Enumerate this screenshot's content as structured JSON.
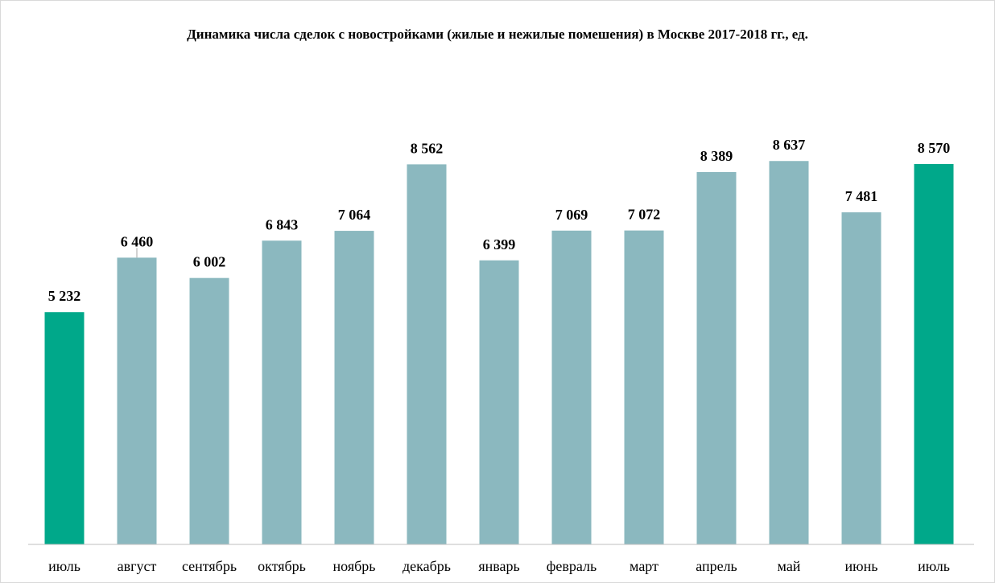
{
  "chart_data": {
    "type": "bar",
    "title": "Динамика числа сделок с новостройками (жилые и нежилые помешения) в Москве 2017-2018 гг., ед.",
    "categories": [
      "июль",
      "август",
      "сентябрь",
      "октябрь",
      "ноябрь",
      "декабрь",
      "январь",
      "февраль",
      "март",
      "апрель",
      "май",
      "июнь",
      "июль"
    ],
    "values": [
      5232,
      6460,
      6002,
      6843,
      7064,
      8562,
      6399,
      7069,
      7072,
      8389,
      8637,
      7481,
      8570
    ],
    "value_labels": [
      "5 232",
      "6 460",
      "6 002",
      "6 843",
      "7 064",
      "8 562",
      "6 399",
      "7 069",
      "7 072",
      "8 389",
      "8 637",
      "7 481",
      "8 570"
    ],
    "ylim": [
      0,
      10000
    ],
    "grid": false,
    "legend": "none",
    "xlabel": "",
    "ylabel": "",
    "colors": {
      "default": "#8bb8bf",
      "highlight": "#00a88a",
      "highlight_indices": [
        0,
        12
      ],
      "axis": "#bfbfbf"
    }
  }
}
